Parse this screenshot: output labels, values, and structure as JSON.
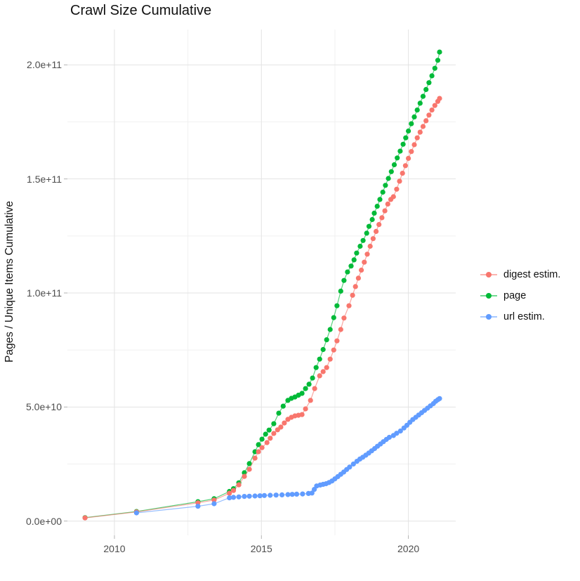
{
  "title": "Crawl Size Cumulative",
  "y_axis_title": "Pages / Unique Items Cumulative",
  "legend": {
    "position": "right",
    "items": [
      {
        "label": "digest estim.",
        "color": "#F8766D"
      },
      {
        "label": "page",
        "color": "#00BA38"
      },
      {
        "label": "url estim.",
        "color": "#619CFF"
      }
    ]
  },
  "chart_data": {
    "type": "scatter",
    "title": "Crawl Size Cumulative",
    "xlabel": "",
    "ylabel": "Pages / Unique Items Cumulative",
    "grid": true,
    "legend_position": "right",
    "xlim": [
      2008.4,
      2021.61
    ],
    "ylim": [
      -6250000000.0,
      215500000000.0
    ],
    "x_ticks": [
      {
        "label": "2010",
        "value": 2010
      },
      {
        "label": "2015",
        "value": 2015
      },
      {
        "label": "2020",
        "value": 2020
      }
    ],
    "x_minor_ticks": [
      2012.5,
      2017.5
    ],
    "y_ticks": [
      {
        "label": "0.0e+00",
        "value": 0
      },
      {
        "label": "5.0e+10",
        "value": 50000000000.0
      },
      {
        "label": "1.0e+11",
        "value": 100000000000.0
      },
      {
        "label": "1.5e+11",
        "value": 150000000000.0
      },
      {
        "label": "2.0e+11",
        "value": 200000000000.0
      }
    ],
    "y_minor_ticks": [
      25000000000.0,
      75000000000.0,
      125000000000.0,
      175000000000.0
    ],
    "y_unit_multiplier": 10000000000.0,
    "series": [
      {
        "name": "page",
        "color": "#00BA38",
        "points": [
          [
            2009.0,
            0.15
          ],
          [
            2010.75,
            0.42
          ],
          [
            2012.84,
            0.85
          ],
          [
            2013.39,
            0.98
          ],
          [
            2013.91,
            1.3
          ],
          [
            2014.05,
            1.42
          ],
          [
            2014.23,
            1.68
          ],
          [
            2014.42,
            2.12
          ],
          [
            2014.59,
            2.52
          ],
          [
            2014.78,
            3.04
          ],
          [
            2014.9,
            3.35
          ],
          [
            2015.02,
            3.59
          ],
          [
            2015.14,
            3.81
          ],
          [
            2015.26,
            3.99
          ],
          [
            2015.42,
            4.27
          ],
          [
            2015.59,
            4.73
          ],
          [
            2015.74,
            5.04
          ],
          [
            2015.9,
            5.29
          ],
          [
            2016.02,
            5.38
          ],
          [
            2016.14,
            5.44
          ],
          [
            2016.26,
            5.52
          ],
          [
            2016.38,
            5.6
          ],
          [
            2016.5,
            5.81
          ],
          [
            2016.62,
            6.0
          ],
          [
            2016.74,
            6.27
          ],
          [
            2016.86,
            6.73
          ],
          [
            2016.98,
            7.1
          ],
          [
            2017.1,
            7.52
          ],
          [
            2017.22,
            7.95
          ],
          [
            2017.34,
            8.4
          ],
          [
            2017.46,
            8.92
          ],
          [
            2017.57,
            9.44
          ],
          [
            2017.7,
            10.08
          ],
          [
            2017.81,
            10.55
          ],
          [
            2017.93,
            10.92
          ],
          [
            2018.05,
            11.18
          ],
          [
            2018.15,
            11.45
          ],
          [
            2018.24,
            11.75
          ],
          [
            2018.36,
            12.05
          ],
          [
            2018.46,
            12.3
          ],
          [
            2018.58,
            12.62
          ],
          [
            2018.66,
            12.92
          ],
          [
            2018.77,
            13.22
          ],
          [
            2018.84,
            13.5
          ],
          [
            2018.94,
            13.8
          ],
          [
            2019.03,
            14.1
          ],
          [
            2019.13,
            14.42
          ],
          [
            2019.22,
            14.72
          ],
          [
            2019.32,
            15.02
          ],
          [
            2019.42,
            15.32
          ],
          [
            2019.52,
            15.62
          ],
          [
            2019.62,
            15.92
          ],
          [
            2019.72,
            16.22
          ],
          [
            2019.82,
            16.52
          ],
          [
            2019.91,
            16.8
          ],
          [
            2020.0,
            17.1
          ],
          [
            2020.1,
            17.42
          ],
          [
            2020.2,
            17.72
          ],
          [
            2020.3,
            18.02
          ],
          [
            2020.4,
            18.32
          ],
          [
            2020.5,
            18.62
          ],
          [
            2020.6,
            18.92
          ],
          [
            2020.7,
            19.22
          ],
          [
            2020.8,
            19.52
          ],
          [
            2020.9,
            19.85
          ],
          [
            2021.0,
            20.2
          ],
          [
            2021.06,
            20.56
          ]
        ]
      },
      {
        "name": "digest estim.",
        "color": "#F8766D",
        "points": [
          [
            2009.0,
            0.14
          ],
          [
            2010.75,
            0.4
          ],
          [
            2012.84,
            0.8
          ],
          [
            2013.39,
            0.92
          ],
          [
            2013.91,
            1.22
          ],
          [
            2014.05,
            1.34
          ],
          [
            2014.23,
            1.59
          ],
          [
            2014.42,
            1.96
          ],
          [
            2014.59,
            2.27
          ],
          [
            2014.78,
            2.76
          ],
          [
            2014.9,
            3.04
          ],
          [
            2015.02,
            3.22
          ],
          [
            2015.19,
            3.44
          ],
          [
            2015.3,
            3.63
          ],
          [
            2015.42,
            3.84
          ],
          [
            2015.55,
            4.0
          ],
          [
            2015.66,
            4.12
          ],
          [
            2015.78,
            4.3
          ],
          [
            2015.9,
            4.46
          ],
          [
            2016.02,
            4.55
          ],
          [
            2016.14,
            4.61
          ],
          [
            2016.26,
            4.64
          ],
          [
            2016.38,
            4.67
          ],
          [
            2016.5,
            4.92
          ],
          [
            2016.67,
            5.29
          ],
          [
            2016.81,
            5.81
          ],
          [
            2016.98,
            6.37
          ],
          [
            2017.1,
            6.55
          ],
          [
            2017.22,
            6.73
          ],
          [
            2017.34,
            7.1
          ],
          [
            2017.46,
            7.5
          ],
          [
            2017.57,
            7.9
          ],
          [
            2017.7,
            8.4
          ],
          [
            2017.81,
            8.9
          ],
          [
            2017.98,
            9.44
          ],
          [
            2018.1,
            9.9
          ],
          [
            2018.2,
            10.28
          ],
          [
            2018.3,
            10.65
          ],
          [
            2018.4,
            11.0
          ],
          [
            2018.5,
            11.35
          ],
          [
            2018.6,
            11.7
          ],
          [
            2018.7,
            12.05
          ],
          [
            2018.8,
            12.38
          ],
          [
            2018.9,
            12.7
          ],
          [
            2019.0,
            13.0
          ],
          [
            2019.1,
            13.3
          ],
          [
            2019.2,
            13.6
          ],
          [
            2019.3,
            13.9
          ],
          [
            2019.4,
            14.1
          ],
          [
            2019.49,
            14.22
          ],
          [
            2019.6,
            14.55
          ],
          [
            2019.7,
            14.9
          ],
          [
            2019.8,
            15.25
          ],
          [
            2019.9,
            15.58
          ],
          [
            2020.0,
            15.9
          ],
          [
            2020.1,
            16.2
          ],
          [
            2020.2,
            16.5
          ],
          [
            2020.3,
            16.8
          ],
          [
            2020.4,
            17.05
          ],
          [
            2020.5,
            17.3
          ],
          [
            2020.6,
            17.55
          ],
          [
            2020.7,
            17.8
          ],
          [
            2020.8,
            18.02
          ],
          [
            2020.9,
            18.22
          ],
          [
            2021.0,
            18.4
          ],
          [
            2021.06,
            18.53
          ]
        ]
      },
      {
        "name": "url estim.",
        "color": "#619CFF",
        "points": [
          [
            2010.75,
            0.36
          ],
          [
            2012.84,
            0.65
          ],
          [
            2013.39,
            0.76
          ],
          [
            2013.91,
            1.02
          ],
          [
            2014.05,
            1.04
          ],
          [
            2014.23,
            1.06
          ],
          [
            2014.42,
            1.08
          ],
          [
            2014.59,
            1.09
          ],
          [
            2014.78,
            1.1
          ],
          [
            2014.95,
            1.11
          ],
          [
            2015.1,
            1.12
          ],
          [
            2015.3,
            1.13
          ],
          [
            2015.5,
            1.14
          ],
          [
            2015.7,
            1.15
          ],
          [
            2015.9,
            1.16
          ],
          [
            2016.05,
            1.17
          ],
          [
            2016.2,
            1.18
          ],
          [
            2016.4,
            1.19
          ],
          [
            2016.6,
            1.21
          ],
          [
            2016.72,
            1.23
          ],
          [
            2016.8,
            1.39
          ],
          [
            2016.88,
            1.54
          ],
          [
            2017.0,
            1.58
          ],
          [
            2017.1,
            1.61
          ],
          [
            2017.2,
            1.64
          ],
          [
            2017.3,
            1.69
          ],
          [
            2017.4,
            1.76
          ],
          [
            2017.5,
            1.85
          ],
          [
            2017.6,
            1.95
          ],
          [
            2017.7,
            2.05
          ],
          [
            2017.8,
            2.15
          ],
          [
            2017.9,
            2.26
          ],
          [
            2018.0,
            2.37
          ],
          [
            2018.13,
            2.5
          ],
          [
            2018.25,
            2.62
          ],
          [
            2018.35,
            2.72
          ],
          [
            2018.45,
            2.8
          ],
          [
            2018.55,
            2.89
          ],
          [
            2018.65,
            2.98
          ],
          [
            2018.75,
            3.08
          ],
          [
            2018.85,
            3.18
          ],
          [
            2018.95,
            3.28
          ],
          [
            2019.05,
            3.38
          ],
          [
            2019.15,
            3.48
          ],
          [
            2019.25,
            3.58
          ],
          [
            2019.35,
            3.67
          ],
          [
            2019.49,
            3.75
          ],
          [
            2019.6,
            3.85
          ],
          [
            2019.73,
            3.95
          ],
          [
            2019.85,
            4.08
          ],
          [
            2019.95,
            4.2
          ],
          [
            2020.05,
            4.33
          ],
          [
            2020.15,
            4.45
          ],
          [
            2020.25,
            4.55
          ],
          [
            2020.35,
            4.65
          ],
          [
            2020.45,
            4.75
          ],
          [
            2020.55,
            4.85
          ],
          [
            2020.65,
            4.95
          ],
          [
            2020.75,
            5.05
          ],
          [
            2020.85,
            5.15
          ],
          [
            2020.93,
            5.25
          ],
          [
            2021.0,
            5.32
          ],
          [
            2021.06,
            5.37
          ]
        ]
      }
    ]
  },
  "style": {
    "major_grid_color": "#e3e3e3",
    "minor_grid_color": "#f0f0f0",
    "tick_mark_color": "#b3b3b3",
    "tick_label_color": "#4d4d4d",
    "text_color": "#111111",
    "background": "#ffffff"
  }
}
